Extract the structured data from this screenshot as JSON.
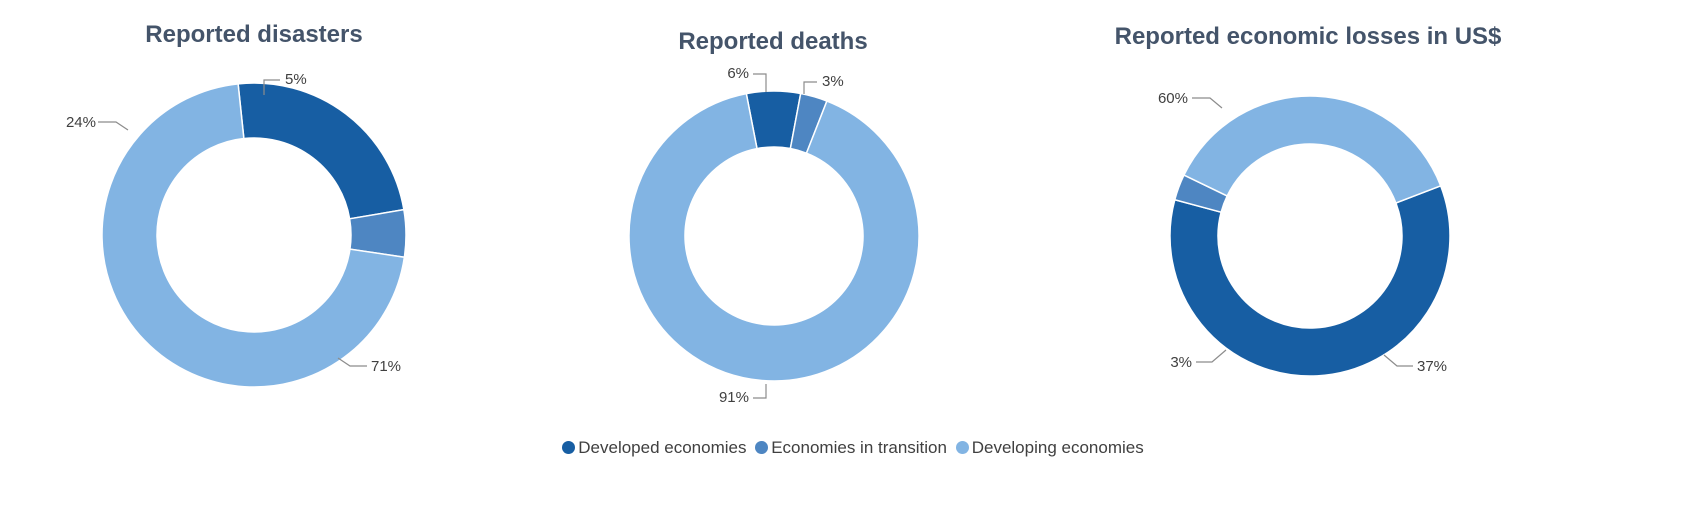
{
  "colors": {
    "developed": "#175ea3",
    "transition": "#4e86c2",
    "developing": "#82b4e3",
    "title": "#44546a",
    "label": "#404040",
    "leader": "#8c8c8c"
  },
  "chart_data": [
    {
      "type": "pie",
      "donut": true,
      "title": "Reported disasters",
      "categories": [
        "Developed economies",
        "Economies in transition",
        "Developing economies"
      ],
      "values": [
        24,
        5,
        71
      ],
      "labels": [
        "24%",
        "5%",
        "71%"
      ],
      "legend": "bottom-center"
    },
    {
      "type": "pie",
      "donut": true,
      "title": "Reported deaths",
      "categories": [
        "Developed economies",
        "Economies in transition",
        "Developing economies"
      ],
      "values": [
        6,
        3,
        91
      ],
      "labels": [
        "6%",
        "3%",
        "91%"
      ],
      "legend": "bottom-center"
    },
    {
      "type": "pie",
      "donut": true,
      "title": "Reported economic losses in US$",
      "categories": [
        "Developed economies",
        "Economies in transition",
        "Developing economies"
      ],
      "values": [
        60,
        3,
        37
      ],
      "labels": [
        "60%",
        "3%",
        "37%"
      ],
      "legend": "bottom-center"
    }
  ],
  "legend": {
    "items": [
      {
        "label": "Developed economies",
        "color": "#175ea3"
      },
      {
        "label": "Economies in transition",
        "color": "#4e86c2"
      },
      {
        "label": "Developing economies",
        "color": "#82b4e3"
      }
    ]
  }
}
